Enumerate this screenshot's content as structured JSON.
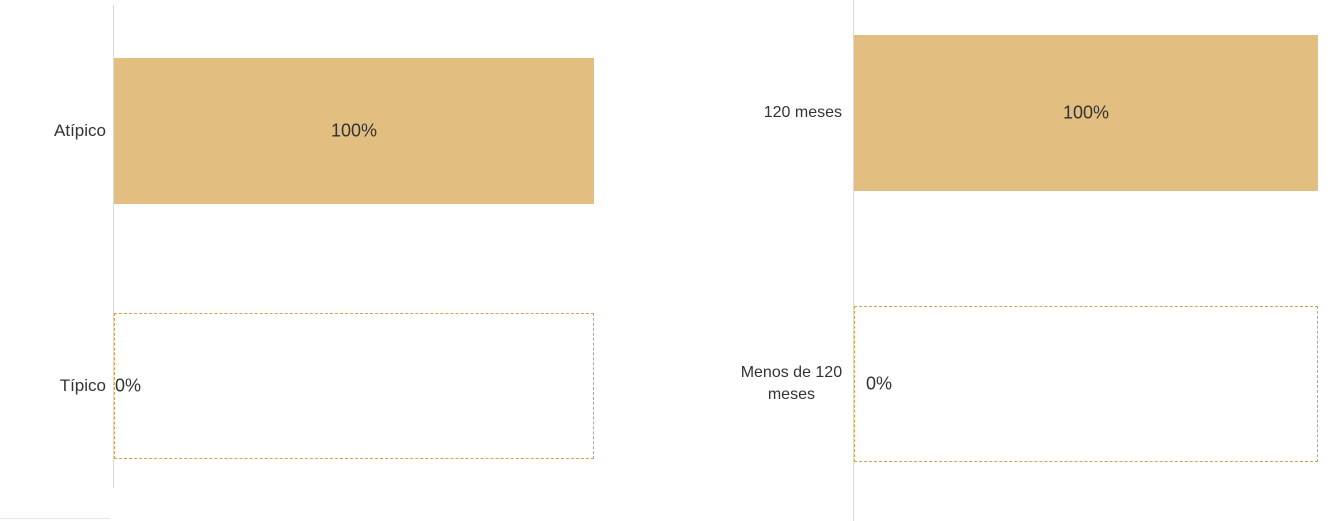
{
  "chart_data": [
    {
      "type": "bar",
      "orientation": "horizontal",
      "categories": [
        "Atípico",
        "Típico"
      ],
      "values": [
        100,
        0
      ],
      "value_labels": [
        "100%",
        "0%"
      ],
      "xlim": [
        0,
        100
      ],
      "colors": [
        "#e2be81"
      ],
      "grid": false
    },
    {
      "type": "bar",
      "orientation": "horizontal",
      "categories": [
        "120 meses",
        "Menos de 120 meses"
      ],
      "values": [
        100,
        0
      ],
      "value_labels": [
        "100%",
        "0%"
      ],
      "xlim": [
        0,
        100
      ],
      "colors": [
        "#e2be81"
      ],
      "grid": false
    }
  ]
}
